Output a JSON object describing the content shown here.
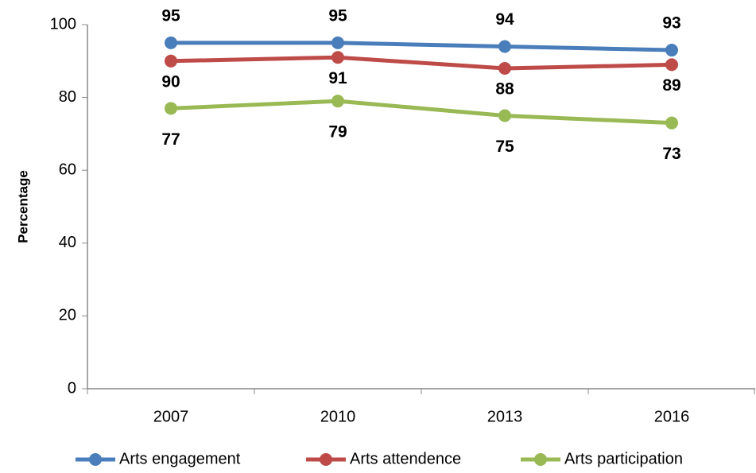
{
  "chart_data": {
    "type": "line",
    "y_label": "Percentage",
    "categories": [
      "2007",
      "2010",
      "2013",
      "2016"
    ],
    "series": [
      {
        "name": "Arts engagement",
        "color": "#4a7ebb",
        "values": [
          95,
          95,
          94,
          93
        ]
      },
      {
        "name": "Arts attendence",
        "color": "#be4b48",
        "values": [
          90,
          91,
          88,
          89
        ]
      },
      {
        "name": "Arts participation",
        "color": "#98b954",
        "values": [
          77,
          79,
          75,
          73
        ]
      }
    ],
    "ylim": [
      0,
      100
    ],
    "yticks": [
      0,
      20,
      40,
      60,
      80,
      100
    ],
    "grid": false,
    "legend": "bottom"
  }
}
